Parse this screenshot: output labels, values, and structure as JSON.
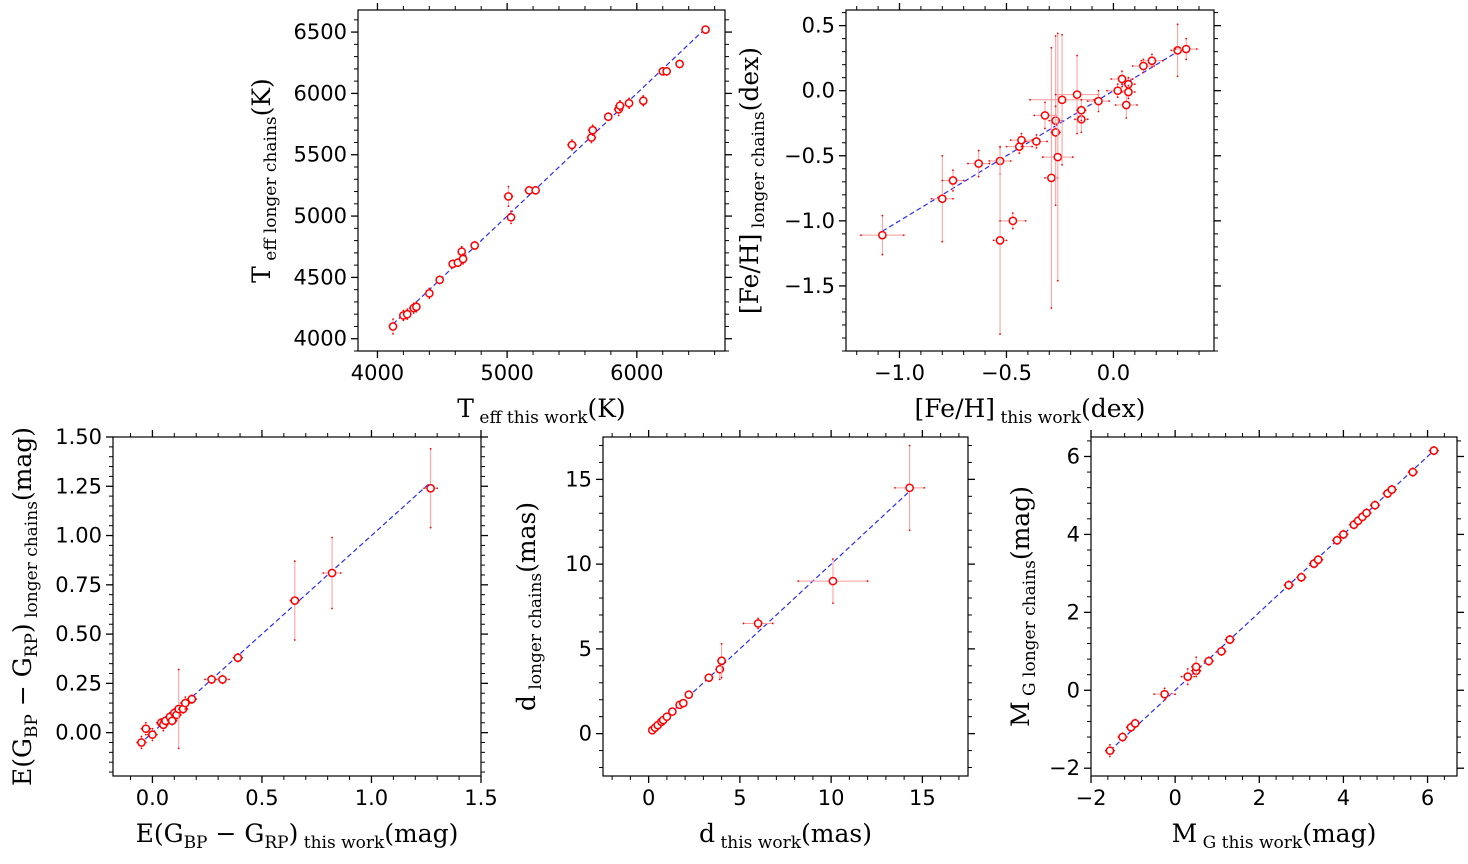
{
  "colors": {
    "marker": "#ff0000",
    "errorbar": "#ff9a9a",
    "fit": "#2b2bff",
    "frame": "#000000"
  },
  "chart_data": [
    {
      "type": "scatter",
      "id": "teff",
      "xlabel": {
        "base": "T",
        "sub": "eff this work",
        "unit": "(K)"
      },
      "ylabel": {
        "base": "T",
        "sub": "eff longer chains",
        "unit": "(K)"
      },
      "xlim": [
        3850,
        6680
      ],
      "ylim": [
        3900,
        6680
      ],
      "xticks": [
        4000,
        5000,
        6000
      ],
      "yticks": [
        4000,
        4500,
        5000,
        5500,
        6000,
        6500
      ],
      "xtick_labels": [
        "4000",
        "5000",
        "6000"
      ],
      "ytick_labels": [
        "4000",
        "4500",
        "5000",
        "5500",
        "6000",
        "6500"
      ],
      "fit_line": [
        [
          4120,
          4120
        ],
        [
          6530,
          6530
        ]
      ],
      "points": [
        [
          4120,
          4100,
          20,
          60
        ],
        [
          4200,
          4190,
          20,
          40
        ],
        [
          4230,
          4200,
          20,
          40
        ],
        [
          4280,
          4250,
          30,
          40
        ],
        [
          4300,
          4260,
          20,
          40
        ],
        [
          4400,
          4370,
          20,
          40
        ],
        [
          4480,
          4480,
          20,
          30
        ],
        [
          4580,
          4610,
          20,
          30
        ],
        [
          4620,
          4620,
          20,
          30
        ],
        [
          4650,
          4710,
          20,
          40
        ],
        [
          4660,
          4650,
          20,
          40
        ],
        [
          4750,
          4760,
          20,
          30
        ],
        [
          5010,
          5160,
          30,
          80
        ],
        [
          5030,
          4990,
          20,
          50
        ],
        [
          5170,
          5210,
          30,
          30
        ],
        [
          5220,
          5210,
          20,
          30
        ],
        [
          5500,
          5580,
          30,
          40
        ],
        [
          5650,
          5640,
          30,
          40
        ],
        [
          5660,
          5700,
          30,
          40
        ],
        [
          5780,
          5810,
          20,
          30
        ],
        [
          5860,
          5870,
          30,
          50
        ],
        [
          5870,
          5900,
          30,
          40
        ],
        [
          5940,
          5920,
          20,
          40
        ],
        [
          6050,
          5940,
          20,
          40
        ],
        [
          6200,
          6180,
          20,
          30
        ],
        [
          6230,
          6180,
          20,
          30
        ],
        [
          6330,
          6240,
          20,
          30
        ],
        [
          6530,
          6520,
          20,
          20
        ]
      ]
    },
    {
      "type": "scatter",
      "id": "feh",
      "xlabel": {
        "base": "[Fe/H]",
        "sub": "this work",
        "unit": "(dex)"
      },
      "ylabel": {
        "base": "[Fe/H]",
        "sub": "longer chains",
        "unit": "(dex)"
      },
      "xlim": [
        -1.25,
        0.47
      ],
      "ylim": [
        -2.0,
        0.62
      ],
      "xticks": [
        -1.0,
        -0.5,
        0.0
      ],
      "yticks": [
        -1.5,
        -1.0,
        -0.5,
        0.0,
        0.5
      ],
      "xtick_labels": [
        "−1.0",
        "−0.5",
        "0.0"
      ],
      "ytick_labels": [
        "−1.5",
        "−1.0",
        "−0.5",
        "0.0",
        "0.5"
      ],
      "fit_line": [
        [
          -1.08,
          -1.08
        ],
        [
          0.35,
          0.35
        ]
      ],
      "points": [
        [
          -1.08,
          -1.11,
          0.1,
          0.15
        ],
        [
          -0.8,
          -0.83,
          0.05,
          0.33
        ],
        [
          -0.75,
          -0.69,
          0.05,
          0.08
        ],
        [
          -0.63,
          -0.56,
          0.05,
          0.1
        ],
        [
          -0.53,
          -0.54,
          0.05,
          0.1
        ],
        [
          -0.53,
          -1.15,
          0.03,
          0.72
        ],
        [
          -0.47,
          -1.0,
          0.06,
          0.06
        ],
        [
          -0.44,
          -0.43,
          0.06,
          0.05
        ],
        [
          -0.43,
          -0.38,
          0.05,
          0.05
        ],
        [
          -0.36,
          -0.39,
          0.05,
          0.05
        ],
        [
          -0.32,
          -0.19,
          0.05,
          0.1
        ],
        [
          -0.29,
          -0.67,
          0.03,
          1.0
        ],
        [
          -0.27,
          -0.23,
          0.03,
          0.65
        ],
        [
          -0.27,
          -0.32,
          0.02,
          0.2
        ],
        [
          -0.26,
          -0.51,
          0.07,
          0.95
        ],
        [
          -0.24,
          -0.07,
          0.15,
          0.5
        ],
        [
          -0.17,
          -0.03,
          0.1,
          0.3
        ],
        [
          -0.15,
          -0.22,
          0.03,
          0.1
        ],
        [
          -0.15,
          -0.15,
          0.02,
          0.08
        ],
        [
          -0.07,
          -0.08,
          0.05,
          0.08
        ],
        [
          0.02,
          0.0,
          0.05,
          0.05
        ],
        [
          0.04,
          0.09,
          0.05,
          0.06
        ],
        [
          0.06,
          -0.11,
          0.05,
          0.1
        ],
        [
          0.07,
          0.05,
          0.03,
          0.05
        ],
        [
          0.07,
          -0.01,
          0.03,
          0.05
        ],
        [
          0.14,
          0.19,
          0.05,
          0.05
        ],
        [
          0.18,
          0.23,
          0.05,
          0.05
        ],
        [
          0.3,
          0.31,
          0.03,
          0.2
        ],
        [
          0.34,
          0.32,
          0.05,
          0.08
        ]
      ]
    },
    {
      "type": "scatter",
      "id": "ebr",
      "xlabel": {
        "base": "E(G<sub>BP</sub> − G<sub>RP</sub>)",
        "sub": "this work",
        "unit": "(mag)"
      },
      "ylabel": {
        "base": "E(G<sub>BP</sub> − G<sub>RP</sub>)",
        "sub": "longer chains",
        "unit": "(mag)"
      },
      "xlim": [
        -0.18,
        1.5
      ],
      "ylim": [
        -0.22,
        1.5
      ],
      "xticks": [
        0.0,
        0.5,
        1.0,
        1.5
      ],
      "yticks": [
        0.0,
        0.25,
        0.5,
        0.75,
        1.0,
        1.25,
        1.5
      ],
      "xtick_labels": [
        "0.0",
        "0.5",
        "1.0",
        "1.5"
      ],
      "ytick_labels": [
        "0.00",
        "0.25",
        "0.50",
        "0.75",
        "1.00",
        "1.25",
        "1.50"
      ],
      "fit_line": [
        [
          -0.06,
          -0.06
        ],
        [
          1.27,
          1.27
        ]
      ],
      "points": [
        [
          -0.05,
          -0.05,
          0.02,
          0.03
        ],
        [
          -0.03,
          0.02,
          0.02,
          0.03
        ],
        [
          0.0,
          -0.01,
          0.02,
          0.03
        ],
        [
          0.04,
          0.05,
          0.02,
          0.02
        ],
        [
          0.05,
          0.04,
          0.02,
          0.03
        ],
        [
          0.06,
          0.06,
          0.02,
          0.02
        ],
        [
          0.08,
          0.08,
          0.02,
          0.02
        ],
        [
          0.09,
          0.06,
          0.02,
          0.02
        ],
        [
          0.1,
          0.1,
          0.02,
          0.02
        ],
        [
          0.11,
          0.09,
          0.02,
          0.02
        ],
        [
          0.12,
          0.12,
          0.02,
          0.2
        ],
        [
          0.14,
          0.12,
          0.02,
          0.02
        ],
        [
          0.15,
          0.15,
          0.02,
          0.03
        ],
        [
          0.18,
          0.17,
          0.02,
          0.02
        ],
        [
          0.27,
          0.27,
          0.03,
          0.02
        ],
        [
          0.32,
          0.27,
          0.03,
          0.02
        ],
        [
          0.39,
          0.38,
          0.02,
          0.02
        ],
        [
          0.65,
          0.67,
          0.02,
          0.2
        ],
        [
          0.82,
          0.81,
          0.04,
          0.18
        ],
        [
          1.27,
          1.24,
          0.03,
          0.2
        ]
      ]
    },
    {
      "type": "scatter",
      "id": "dist",
      "xlabel": {
        "base": "d",
        "sub": "this work",
        "unit": "(mas)"
      },
      "ylabel": {
        "base": "d",
        "sub": "longer chains",
        "unit": "(mas)"
      },
      "xlim": [
        -2.5,
        17.5
      ],
      "ylim": [
        -2.5,
        17.5
      ],
      "xticks": [
        0,
        5,
        10,
        15
      ],
      "yticks": [
        0,
        5,
        10,
        15
      ],
      "xtick_labels": [
        "0",
        "5",
        "10",
        "15"
      ],
      "ytick_labels": [
        "0",
        "5",
        "10",
        "15"
      ],
      "fit_line": [
        [
          0.2,
          0.2
        ],
        [
          14.5,
          14.5
        ]
      ],
      "points": [
        [
          0.2,
          0.2,
          0.05,
          0.05
        ],
        [
          0.35,
          0.35,
          0.05,
          0.05
        ],
        [
          0.5,
          0.5,
          0.05,
          0.05
        ],
        [
          0.7,
          0.7,
          0.05,
          0.05
        ],
        [
          0.8,
          0.8,
          0.05,
          0.05
        ],
        [
          1.0,
          1.0,
          0.05,
          0.05
        ],
        [
          1.3,
          1.3,
          0.1,
          0.1
        ],
        [
          1.7,
          1.7,
          0.1,
          0.1
        ],
        [
          1.9,
          1.8,
          0.1,
          0.15
        ],
        [
          2.2,
          2.3,
          0.1,
          0.15
        ],
        [
          3.3,
          3.3,
          0.2,
          0.2
        ],
        [
          3.9,
          3.8,
          0.2,
          0.6
        ],
        [
          4.0,
          4.3,
          0.2,
          1.0
        ],
        [
          6.0,
          6.5,
          0.8,
          0.3
        ],
        [
          10.1,
          9.0,
          1.9,
          1.3
        ],
        [
          14.3,
          14.5,
          0.8,
          2.5
        ]
      ]
    },
    {
      "type": "scatter",
      "id": "mg",
      "xlabel": {
        "base": "M",
        "sub": "G this work",
        "unit": "(mag)"
      },
      "ylabel": {
        "base": "M",
        "sub": "G longer chains",
        "unit": "(mag)"
      },
      "xlim": [
        -2.0,
        6.7
      ],
      "ylim": [
        -2.2,
        6.5
      ],
      "xticks": [
        -2,
        0,
        2,
        4,
        6
      ],
      "yticks": [
        -2,
        0,
        2,
        4,
        6
      ],
      "xtick_labels": [
        "−2",
        "0",
        "2",
        "4",
        "6"
      ],
      "ytick_labels": [
        "−2",
        "0",
        "2",
        "4",
        "6"
      ],
      "fit_line": [
        [
          -1.55,
          -1.55
        ],
        [
          6.15,
          6.15
        ]
      ],
      "points": [
        [
          -1.55,
          -1.55,
          0.1,
          0.15
        ],
        [
          -1.25,
          -1.2,
          0.1,
          0.1
        ],
        [
          -1.05,
          -0.95,
          0.1,
          0.1
        ],
        [
          -0.95,
          -0.85,
          0.1,
          0.1
        ],
        [
          -0.25,
          -0.1,
          0.25,
          0.15
        ],
        [
          0.3,
          0.35,
          0.15,
          0.2
        ],
        [
          0.5,
          0.5,
          0.1,
          0.1
        ],
        [
          0.5,
          0.6,
          0.1,
          0.25
        ],
        [
          0.8,
          0.75,
          0.1,
          0.1
        ],
        [
          1.1,
          1.0,
          0.1,
          0.1
        ],
        [
          1.3,
          1.3,
          0.1,
          0.1
        ],
        [
          2.7,
          2.7,
          0.1,
          0.1
        ],
        [
          3.0,
          2.9,
          0.1,
          0.1
        ],
        [
          3.3,
          3.25,
          0.1,
          0.1
        ],
        [
          3.4,
          3.35,
          0.1,
          0.1
        ],
        [
          3.85,
          3.85,
          0.1,
          0.1
        ],
        [
          4.0,
          4.0,
          0.1,
          0.1
        ],
        [
          4.25,
          4.25,
          0.1,
          0.1
        ],
        [
          4.35,
          4.35,
          0.1,
          0.1
        ],
        [
          4.45,
          4.45,
          0.1,
          0.1
        ],
        [
          4.55,
          4.55,
          0.1,
          0.1
        ],
        [
          4.75,
          4.75,
          0.1,
          0.1
        ],
        [
          5.05,
          5.05,
          0.1,
          0.1
        ],
        [
          5.15,
          5.15,
          0.1,
          0.1
        ],
        [
          5.65,
          5.6,
          0.1,
          0.1
        ],
        [
          6.15,
          6.15,
          0.1,
          0.1
        ]
      ]
    }
  ]
}
